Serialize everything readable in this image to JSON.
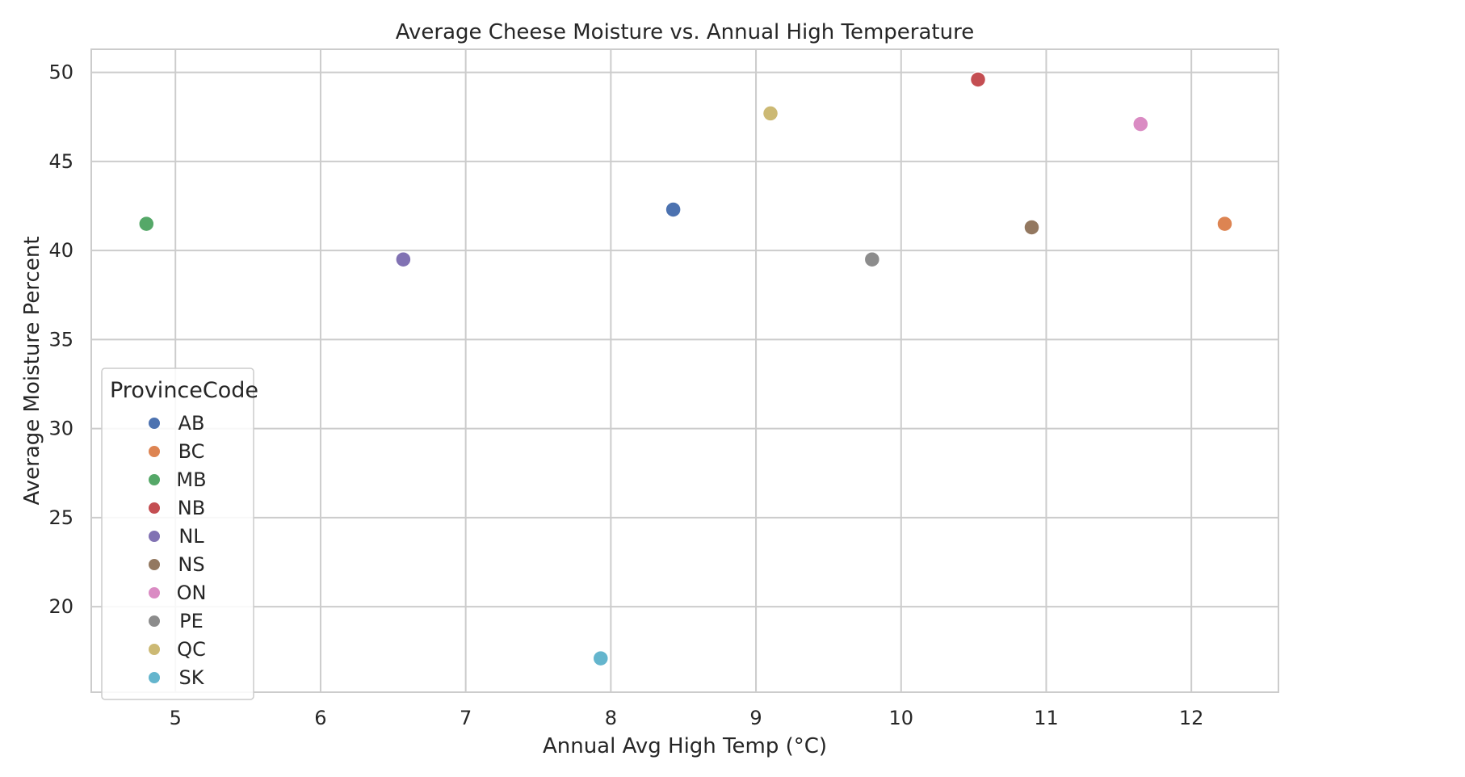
{
  "chart_data": {
    "type": "scatter",
    "title": "Average Cheese Moisture vs. Annual High Temperature",
    "xlabel": "Annual Avg High Temp (°C)",
    "ylabel": "Average Moisture Percent",
    "xlim": [
      4.42,
      12.6
    ],
    "ylim": [
      15.2,
      51.3
    ],
    "xticks": [
      5,
      6,
      7,
      8,
      9,
      10,
      11,
      12
    ],
    "yticks": [
      20,
      25,
      30,
      35,
      40,
      45,
      50
    ],
    "grid": true,
    "legend": {
      "title": "ProvinceCode",
      "placement": "lower-left"
    },
    "series": [
      {
        "name": "AB",
        "color": "#4c72b0",
        "x": 8.43,
        "y": 42.3
      },
      {
        "name": "BC",
        "color": "#dd8452",
        "x": 12.23,
        "y": 41.5
      },
      {
        "name": "MB",
        "color": "#55a868",
        "x": 4.8,
        "y": 41.5
      },
      {
        "name": "NB",
        "color": "#c44e52",
        "x": 10.53,
        "y": 49.6
      },
      {
        "name": "NL",
        "color": "#8172b3",
        "x": 6.57,
        "y": 39.5
      },
      {
        "name": "NS",
        "color": "#937860",
        "x": 10.9,
        "y": 41.3
      },
      {
        "name": "ON",
        "color": "#da8bc3",
        "x": 11.65,
        "y": 47.1
      },
      {
        "name": "PE",
        "color": "#8c8c8c",
        "x": 9.8,
        "y": 39.5
      },
      {
        "name": "QC",
        "color": "#ccb974",
        "x": 9.1,
        "y": 47.7
      },
      {
        "name": "SK",
        "color": "#64b5cd",
        "x": 7.93,
        "y": 17.1
      }
    ]
  }
}
